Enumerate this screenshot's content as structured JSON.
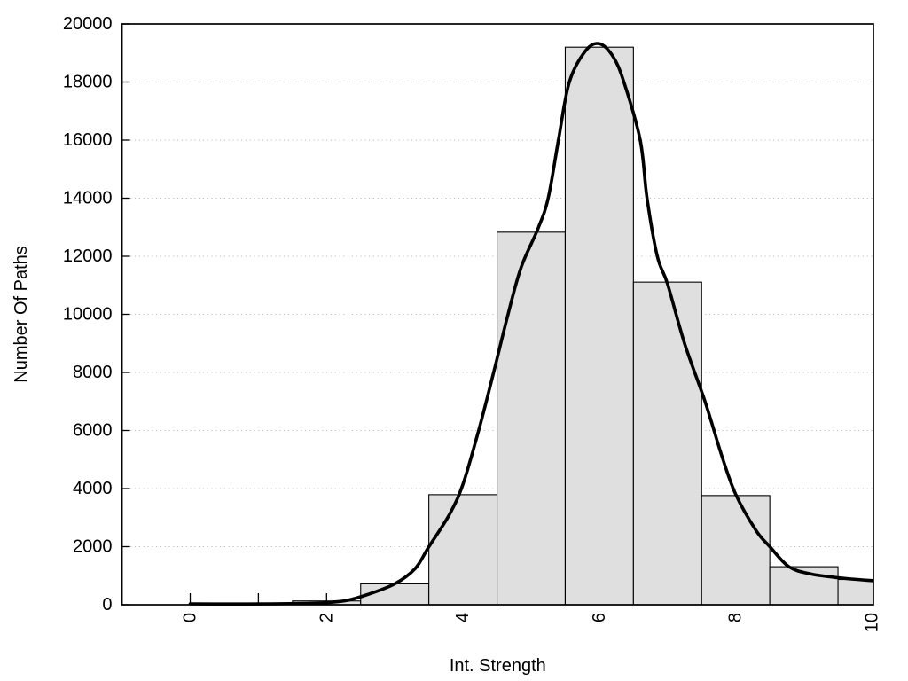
{
  "chart_data": {
    "type": "bar",
    "subtype": "histogram_with_fit_curve",
    "title": "",
    "xlabel": "Int. Strength",
    "ylabel": "Number Of Paths",
    "xlim": [
      -1,
      10.03
    ],
    "ylim": [
      0,
      20000
    ],
    "grid": "horizontal-dotted",
    "legend_position": "none",
    "bin_width": 1,
    "x_ticks": [
      {
        "value": 0,
        "label": "0"
      },
      {
        "value": 1,
        "label": ""
      },
      {
        "value": 2,
        "label": "2"
      },
      {
        "value": 3,
        "label": ""
      },
      {
        "value": 4,
        "label": "4"
      },
      {
        "value": 5,
        "label": ""
      },
      {
        "value": 6,
        "label": "6"
      },
      {
        "value": 7,
        "label": ""
      },
      {
        "value": 8,
        "label": "8"
      },
      {
        "value": 9,
        "label": ""
      },
      {
        "value": 10,
        "label": "10"
      }
    ],
    "y_ticks": [
      {
        "value": 0,
        "label": "0"
      },
      {
        "value": 2000,
        "label": "2000"
      },
      {
        "value": 4000,
        "label": "4000"
      },
      {
        "value": 6000,
        "label": "6000"
      },
      {
        "value": 8000,
        "label": "8000"
      },
      {
        "value": 10000,
        "label": "10000"
      },
      {
        "value": 12000,
        "label": "12000"
      },
      {
        "value": 14000,
        "label": "14000"
      },
      {
        "value": 16000,
        "label": "16000"
      },
      {
        "value": 18000,
        "label": "18000"
      },
      {
        "value": 20000,
        "label": "20000"
      }
    ],
    "gridline_values": [
      2000,
      4000,
      6000,
      8000,
      10000,
      12000,
      14000,
      16000,
      18000
    ],
    "bars": [
      {
        "center": 2,
        "count": 130
      },
      {
        "center": 3,
        "count": 720
      },
      {
        "center": 4,
        "count": 3790
      },
      {
        "center": 5,
        "count": 12830
      },
      {
        "center": 6,
        "count": 19200
      },
      {
        "center": 7,
        "count": 11110
      },
      {
        "center": 8,
        "count": 3760
      },
      {
        "center": 9,
        "count": 1310
      },
      {
        "center": 10,
        "count": 870
      }
    ],
    "curve_points": [
      [
        0.0,
        30
      ],
      [
        0.6,
        25
      ],
      [
        1.2,
        30
      ],
      [
        1.7,
        45
      ],
      [
        2.0,
        70
      ],
      [
        2.3,
        150
      ],
      [
        2.6,
        350
      ],
      [
        3.0,
        720
      ],
      [
        3.3,
        1250
      ],
      [
        3.5,
        2000
      ],
      [
        3.8,
        3100
      ],
      [
        4.0,
        4150
      ],
      [
        4.23,
        6000
      ],
      [
        4.45,
        8000
      ],
      [
        4.65,
        9900
      ],
      [
        4.85,
        11600
      ],
      [
        5.1,
        12950
      ],
      [
        5.25,
        14000
      ],
      [
        5.4,
        16000
      ],
      [
        5.56,
        18000
      ],
      [
        5.8,
        19080
      ],
      [
        6.0,
        19320
      ],
      [
        6.2,
        18880
      ],
      [
        6.36,
        18000
      ],
      [
        6.6,
        16000
      ],
      [
        6.7,
        14000
      ],
      [
        6.85,
        12000
      ],
      [
        7.0,
        11050
      ],
      [
        7.25,
        9000
      ],
      [
        7.55,
        7000
      ],
      [
        7.8,
        5100
      ],
      [
        8.0,
        3800
      ],
      [
        8.3,
        2550
      ],
      [
        8.5,
        2000
      ],
      [
        8.78,
        1310
      ],
      [
        9.1,
        1060
      ],
      [
        9.5,
        930
      ],
      [
        10.0,
        830
      ]
    ],
    "colors": {
      "bar_fill": "#dfdfdf",
      "bar_border": "#000000",
      "curve": "#000000",
      "grid": "#bfbfbf",
      "text": "#000000",
      "background": "#ffffff"
    }
  }
}
